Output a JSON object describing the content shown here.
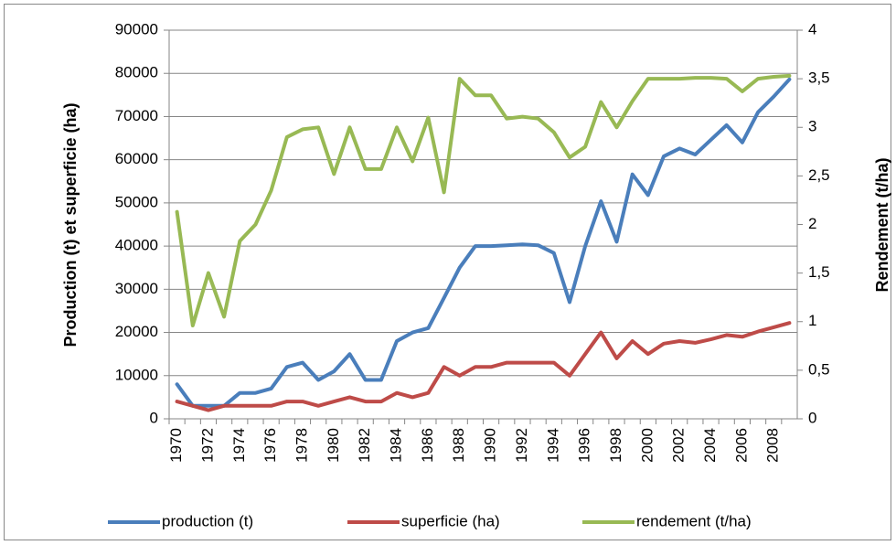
{
  "chart_data": {
    "type": "line",
    "y_label": "Production (t) et superficie (ha)",
    "y2_label": "Rendement (t/ha)",
    "categories": [
      "1970",
      null,
      "1972",
      null,
      "1974",
      null,
      "1976",
      null,
      "1978",
      null,
      "1980",
      null,
      "1982",
      null,
      "1984",
      null,
      "1986",
      null,
      "1988",
      null,
      "1990",
      null,
      "1992",
      null,
      "1994",
      null,
      "1996",
      null,
      "1998",
      null,
      "2000",
      null,
      "2002",
      null,
      "2004",
      null,
      "2006",
      null,
      "2008",
      null
    ],
    "series": [
      {
        "name": "production (t)",
        "color": "#4a7ebb",
        "values": [
          8000,
          3000,
          3000,
          3000,
          6000,
          6000,
          7000,
          12000,
          13000,
          9000,
          11000,
          15000,
          9000,
          9000,
          18000,
          20000,
          21000,
          28000,
          35000,
          40000,
          40000,
          40200,
          40400,
          40200,
          38400,
          27000,
          40000,
          50400,
          41000,
          56600,
          51800,
          60800,
          62600,
          61200,
          64600,
          68000,
          64000,
          71000,
          74600,
          78600
        ]
      },
      {
        "name": "superficie (ha)",
        "color": "#be4b48",
        "values": [
          4000,
          3000,
          2000,
          3000,
          3000,
          3000,
          3000,
          4000,
          4000,
          3000,
          4000,
          5000,
          4000,
          4000,
          6000,
          5000,
          6000,
          12000,
          10000,
          12000,
          12000,
          13000,
          13000,
          13000,
          13000,
          10000,
          15000,
          20000,
          14000,
          18000,
          15000,
          17400,
          18000,
          17600,
          18400,
          19400,
          19000,
          20200,
          21200,
          22200
        ]
      },
      {
        "name": "rendement (t/ha)",
        "color": "#98b954",
        "axis": "y2",
        "values": [
          2.13,
          0.96,
          1.5,
          1.05,
          1.83,
          2.0,
          2.35,
          2.9,
          2.98,
          3.0,
          2.52,
          3.0,
          2.57,
          2.57,
          3.0,
          2.65,
          3.1,
          2.33,
          3.5,
          3.33,
          3.33,
          3.09,
          3.11,
          3.09,
          2.95,
          2.69,
          2.8,
          3.26,
          3.0,
          3.27,
          3.5,
          3.5,
          3.5,
          3.51,
          3.51,
          3.5,
          3.37,
          3.5,
          3.52,
          3.53
        ]
      }
    ],
    "ylim": [
      0,
      90000
    ],
    "yticks": [
      0,
      10000,
      20000,
      30000,
      40000,
      50000,
      60000,
      70000,
      80000,
      90000
    ],
    "y2lim": [
      0,
      4
    ],
    "y2ticks": [
      0,
      {
        "value": 0.5,
        "label": "0,5"
      },
      1,
      {
        "value": 1.5,
        "label": "1,5"
      },
      2,
      {
        "value": 2.5,
        "label": "2,5"
      },
      3,
      {
        "value": 3.5,
        "label": "3,5"
      },
      4
    ],
    "grid": true,
    "legend": "bottom"
  }
}
